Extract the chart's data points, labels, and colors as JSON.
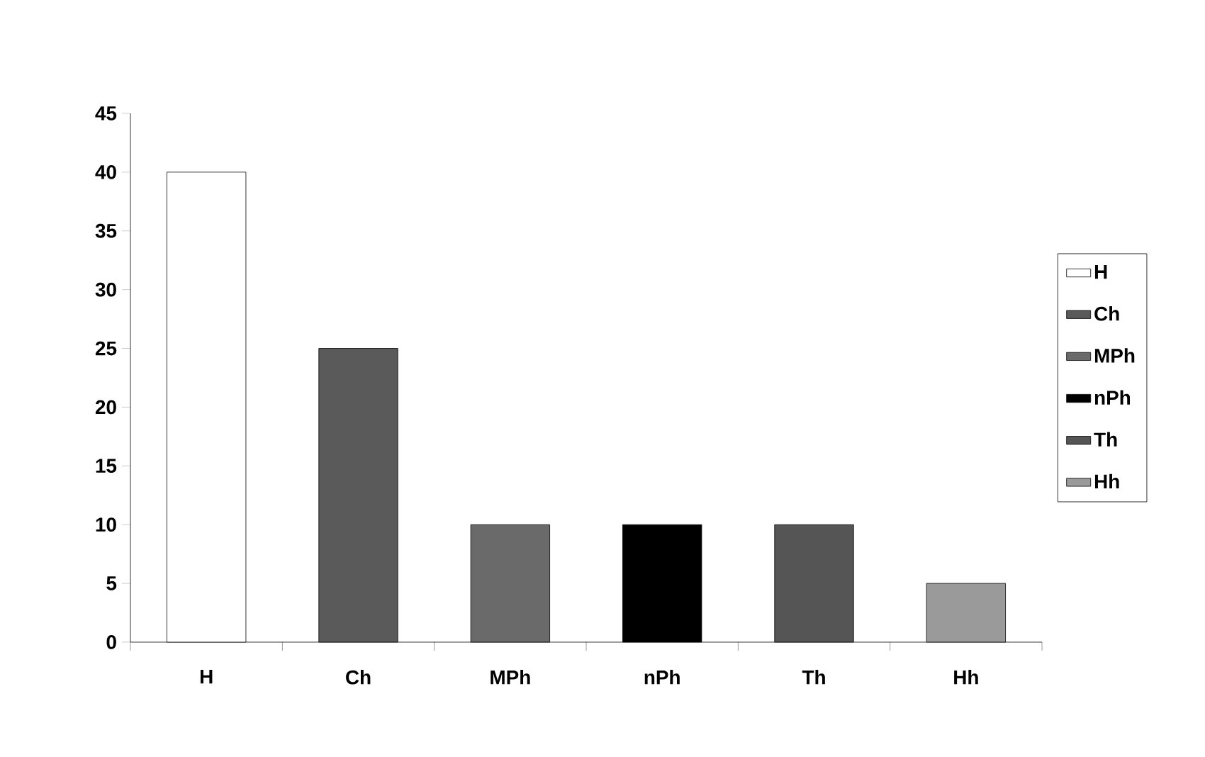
{
  "chart_data": {
    "type": "bar",
    "categories": [
      "H",
      "Ch",
      "MPh",
      "nPh",
      "Th",
      "Hh"
    ],
    "series": [
      {
        "name": "H",
        "color": "#ffffff",
        "values": [
          40,
          null,
          null,
          null,
          null,
          null
        ]
      },
      {
        "name": "Ch",
        "color": "#5a5a5a",
        "values": [
          null,
          25,
          null,
          null,
          null,
          null
        ]
      },
      {
        "name": "MPh",
        "color": "#6a6a6a",
        "values": [
          null,
          null,
          10,
          null,
          null,
          null
        ]
      },
      {
        "name": "nPh",
        "color": "#000000",
        "values": [
          null,
          null,
          null,
          10,
          null,
          null
        ]
      },
      {
        "name": "Th",
        "color": "#555555",
        "values": [
          null,
          null,
          null,
          null,
          10,
          null
        ]
      },
      {
        "name": "Hh",
        "color": "#9a9a9a",
        "values": [
          null,
          null,
          null,
          null,
          null,
          5
        ]
      }
    ],
    "ylim": [
      0,
      45
    ],
    "yticks": [
      0,
      5,
      10,
      15,
      20,
      25,
      30,
      35,
      40,
      45
    ],
    "grid": false,
    "legend": "right"
  }
}
